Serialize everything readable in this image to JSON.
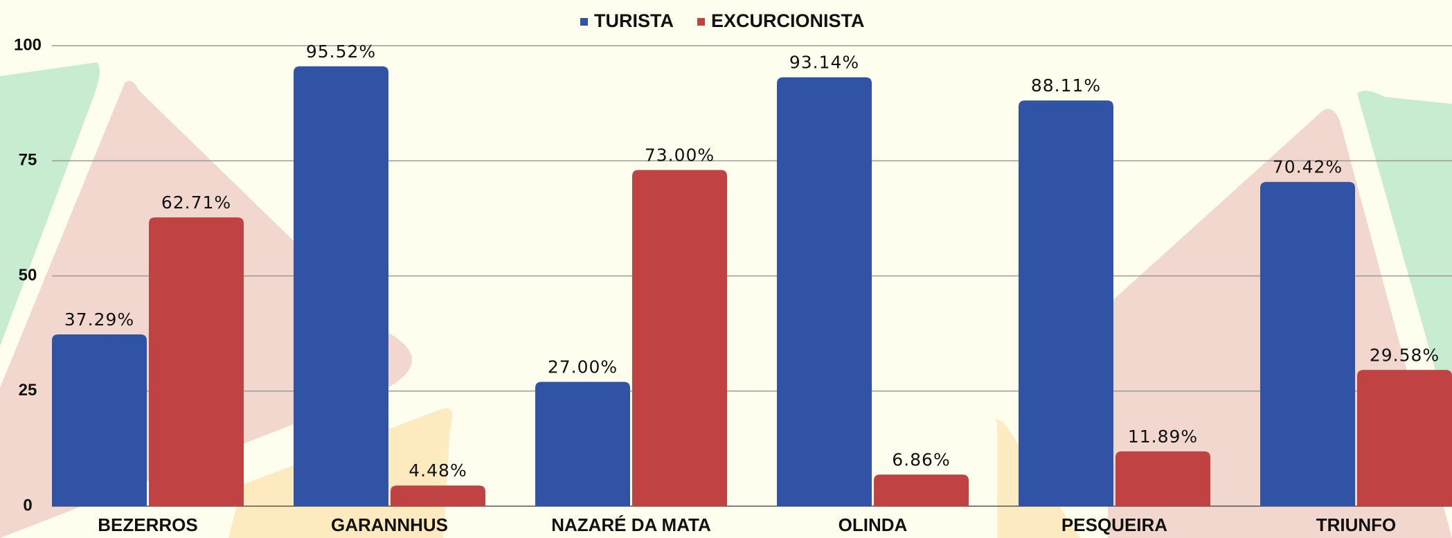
{
  "chart_data": {
    "type": "bar",
    "categories": [
      "BEZERROS",
      "GARANNHUS",
      "NAZARÉ DA MATA",
      "OLINDA",
      "PESQUEIRA",
      "TRIUNFO"
    ],
    "series": [
      {
        "name": "TURISTA",
        "color": "#3153a5",
        "values": [
          37.29,
          95.52,
          27.0,
          93.14,
          88.11,
          70.42
        ],
        "value_labels": [
          "37.29%",
          "95.52%",
          "27.00%",
          "93.14%",
          "88.11%",
          "70.42%"
        ]
      },
      {
        "name": "EXCURCIONISTA",
        "color": "#c14243",
        "values": [
          62.71,
          4.48,
          73.0,
          6.86,
          11.89,
          29.58
        ],
        "value_labels": [
          "62.71%",
          "4.48%",
          "73.00%",
          "6.86%",
          "11.89%",
          "29.58%"
        ]
      }
    ],
    "ylim": [
      0,
      100
    ],
    "yticks": [
      0,
      25,
      50,
      75,
      100
    ],
    "grid": true,
    "legend": "top"
  }
}
